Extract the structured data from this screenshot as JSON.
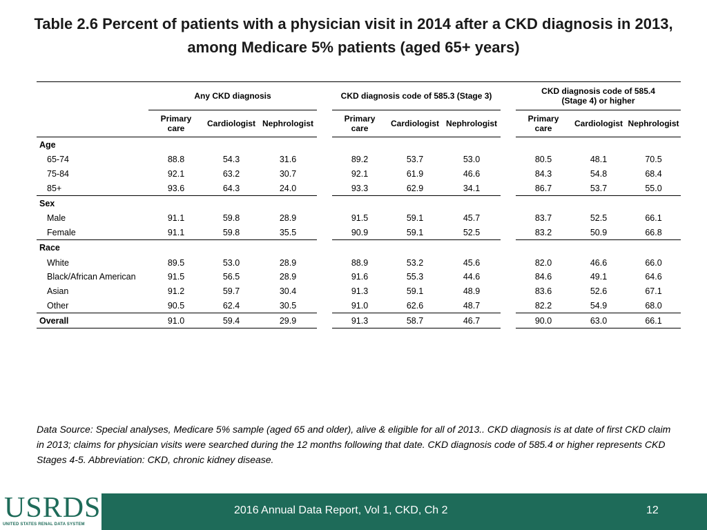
{
  "title": {
    "line1": "Table 2.6  Percent of patients with a physician visit in 2014 after a CKD diagnosis in 2013,",
    "line2": "among Medicare 5% patients (aged 65+ years)"
  },
  "table": {
    "groups": {
      "g1": "Any CKD diagnosis",
      "g2": "CKD diagnosis code of 585.3 (Stage 3)",
      "g3_line1": "CKD diagnosis code of 585.4",
      "g3_line2": "(Stage 4) or higher"
    },
    "subheaders": {
      "primary_line1": "Primary",
      "primary_line2": "care",
      "cardiologist": "Cardiologist",
      "nephrologist": "Nephrologist"
    },
    "sections": {
      "age": "Age",
      "sex": "Sex",
      "race": "Race"
    },
    "rows": [
      {
        "label": "65-74",
        "values": [
          "88.8",
          "54.3",
          "31.6",
          "89.2",
          "53.7",
          "53.0",
          "80.5",
          "48.1",
          "70.5"
        ]
      },
      {
        "label": "75-84",
        "values": [
          "92.1",
          "63.2",
          "30.7",
          "92.1",
          "61.9",
          "46.6",
          "84.3",
          "54.8",
          "68.4"
        ]
      },
      {
        "label": "85+",
        "values": [
          "93.6",
          "64.3",
          "24.0",
          "93.3",
          "62.9",
          "34.1",
          "86.7",
          "53.7",
          "55.0"
        ]
      },
      {
        "label": "Male",
        "values": [
          "91.1",
          "59.8",
          "28.9",
          "91.5",
          "59.1",
          "45.7",
          "83.7",
          "52.5",
          "66.1"
        ]
      },
      {
        "label": "Female",
        "values": [
          "91.1",
          "59.8",
          "35.5",
          "90.9",
          "59.1",
          "52.5",
          "83.2",
          "50.9",
          "66.8"
        ]
      },
      {
        "label": "White",
        "values": [
          "89.5",
          "53.0",
          "28.9",
          "88.9",
          "53.2",
          "45.6",
          "82.0",
          "46.6",
          "66.0"
        ]
      },
      {
        "label": "Black/African American",
        "values": [
          "91.5",
          "56.5",
          "28.9",
          "91.6",
          "55.3",
          "44.6",
          "84.6",
          "49.1",
          "64.6"
        ]
      },
      {
        "label": "Asian",
        "values": [
          "91.2",
          "59.7",
          "30.4",
          "91.3",
          "59.1",
          "48.9",
          "83.6",
          "52.6",
          "67.1"
        ]
      },
      {
        "label": "Other",
        "values": [
          "90.5",
          "62.4",
          "30.5",
          "91.0",
          "62.6",
          "48.7",
          "82.2",
          "54.9",
          "68.0"
        ]
      },
      {
        "label": "Overall",
        "values": [
          "91.0",
          "59.4",
          "29.9",
          "91.3",
          "58.7",
          "46.7",
          "90.0",
          "63.0",
          "66.1"
        ]
      }
    ]
  },
  "footnote": "Data Source: Special analyses, Medicare 5% sample (aged 65 and older), alive & eligible for all of 2013.. CKD diagnosis is at date of first CKD claim in 2013; claims for physician visits were searched during the 12 months following that date. CKD diagnosis code of 585.4 or higher represents CKD Stages 4-5. Abbreviation: CKD, chronic kidney disease.",
  "footer": {
    "logo": "USRDS",
    "logo_sub": "UNITED STATES RENAL DATA SYSTEM",
    "text": "2016 Annual Data Report, Vol 1, CKD, Ch 2",
    "page": "12"
  },
  "colors": {
    "footer_bg": "#1e6b59",
    "logo": "#1e6b59"
  }
}
